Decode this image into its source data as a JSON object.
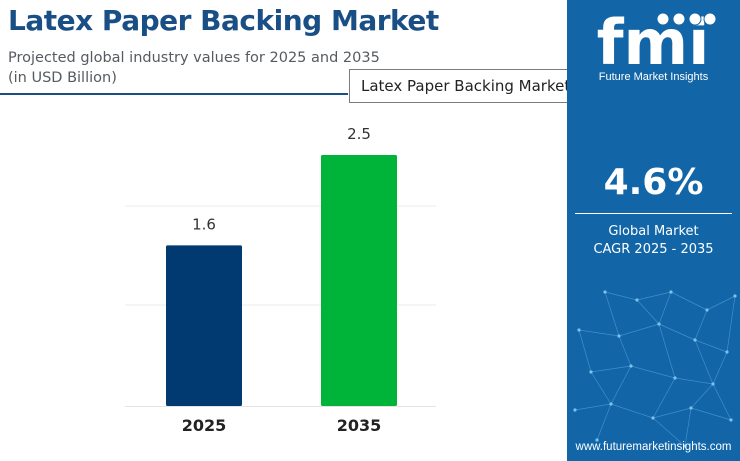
{
  "header": {
    "title": "Latex Paper Backing Market",
    "subtitle_line1": "Projected global industry values for 2025 and 2035",
    "subtitle_line2": "(in USD Billion)"
  },
  "tooltip": {
    "text": "Latex Paper Backing Market"
  },
  "chart_data": {
    "type": "bar",
    "categories": [
      "2025",
      "2035"
    ],
    "values": [
      1.6,
      2.5
    ],
    "data_labels": [
      "1.6",
      "2.5"
    ],
    "colors": [
      "#003a70",
      "#00b43a"
    ],
    "ylim": [
      0,
      2.5
    ],
    "grid": true,
    "title": "",
    "xlabel": "",
    "ylabel": ""
  },
  "panel": {
    "logo_text": "fmi",
    "brand": "Future Market Insights",
    "cagr_value": "4.6%",
    "cagr_line1": "Global Market",
    "cagr_line2": "CAGR 2025 - 2035",
    "website": "www.futuremarketinsights.com",
    "background_color": "#1266a8"
  }
}
